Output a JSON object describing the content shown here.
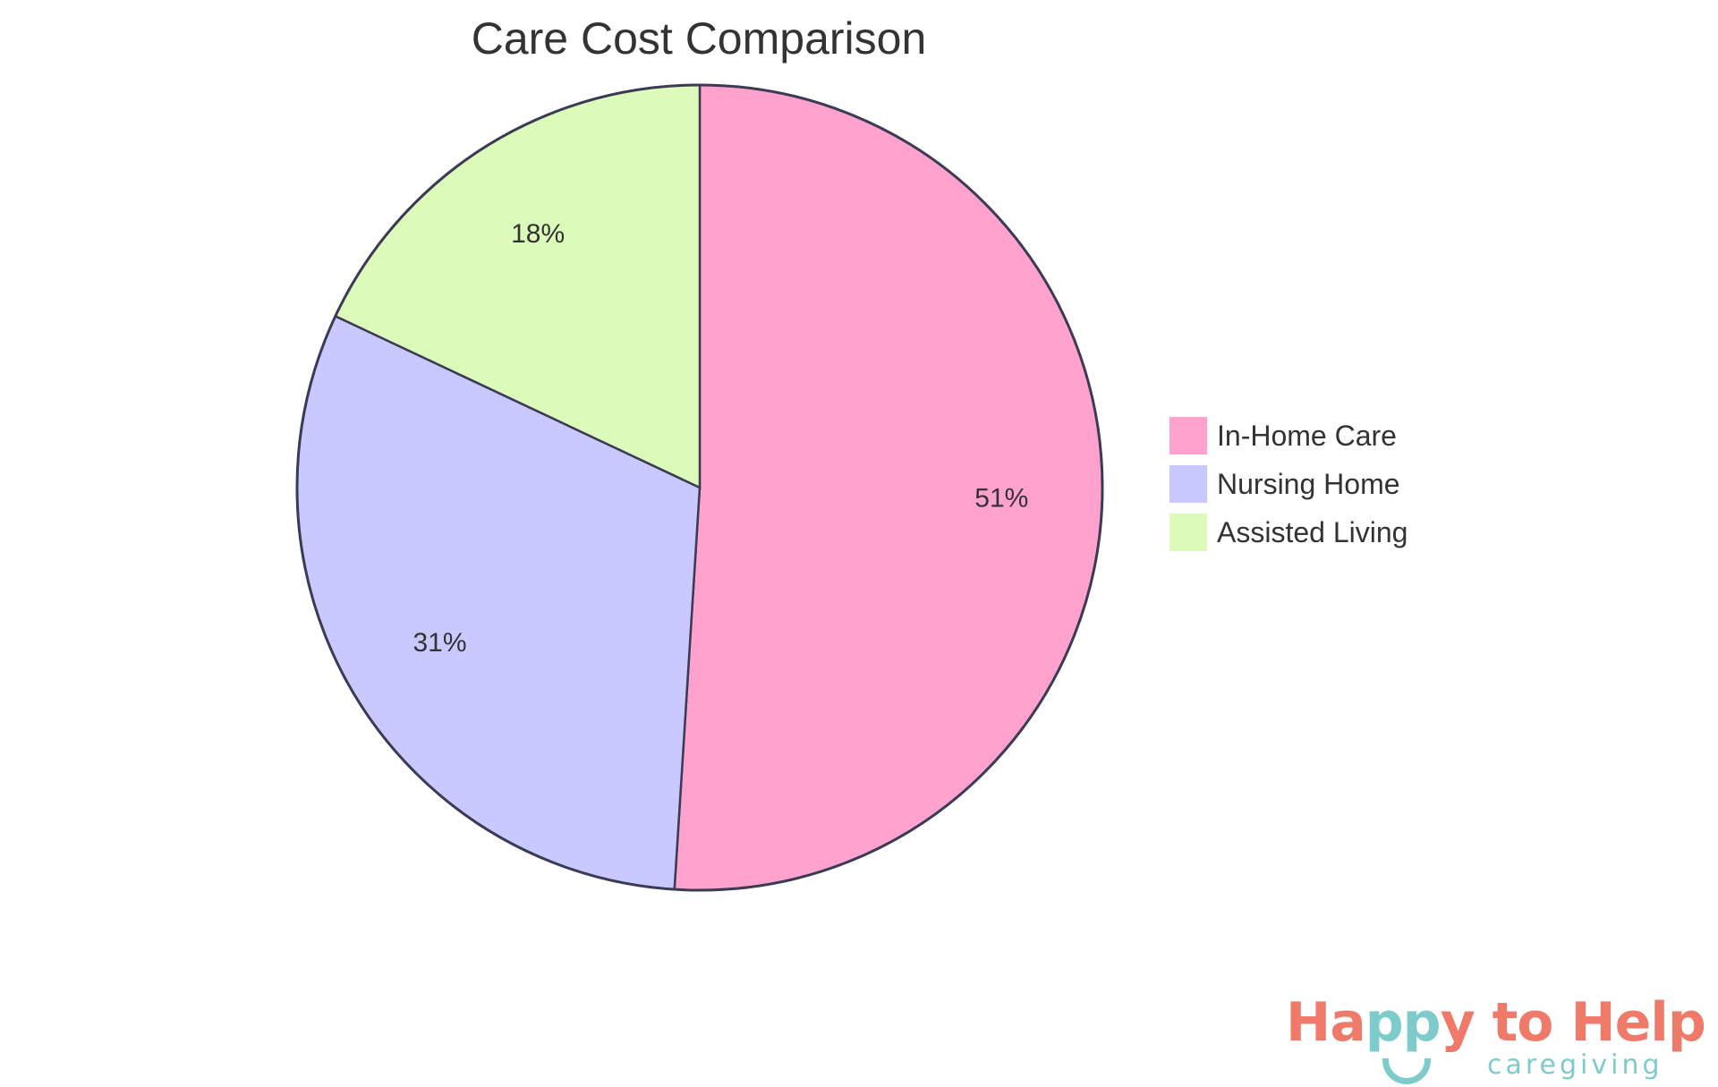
{
  "chart_data": {
    "type": "pie",
    "title": "Care Cost Comparison",
    "categories": [
      "In-Home Care",
      "Nursing Home",
      "Assisted Living"
    ],
    "values": [
      51,
      31,
      18
    ],
    "labels": [
      "51%",
      "31%",
      "18%"
    ],
    "colors": [
      "#ffa3ce",
      "#c9c9ff",
      "#dcfab9"
    ],
    "stroke": "#3b3b55",
    "legend_position": "right"
  },
  "logo": {
    "main_a": "Ha",
    "main_b": "pp",
    "main_c": "y to Help",
    "sub": "caregiving"
  }
}
